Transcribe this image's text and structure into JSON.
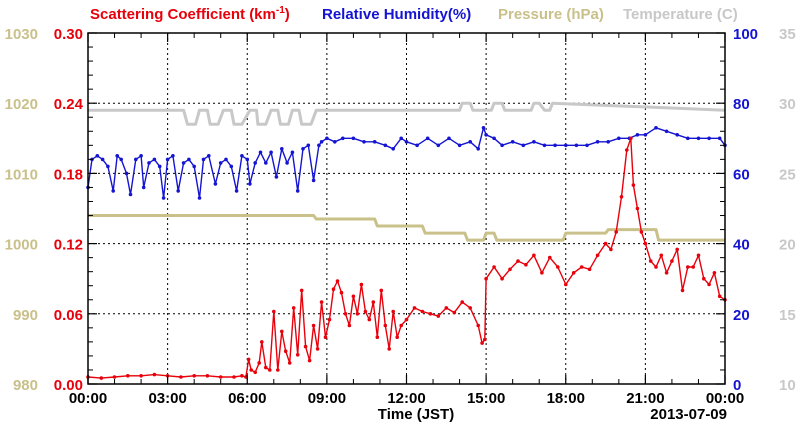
{
  "chart_data": {
    "type": "line",
    "legend": [
      {
        "text": "Scattering Coefficient (km",
        "sup": "-1",
        "tail": ")",
        "color": "#e8000b"
      },
      {
        "text": "Relative Humidity(%)",
        "color": "#1414d2"
      },
      {
        "text": "Pressure (hPa)",
        "color": "#c9c08a"
      },
      {
        "text": "Temperature (C)",
        "color": "#c8c8c8"
      }
    ],
    "xlabel": "Time (JST)",
    "date_label": "2013-07-09",
    "x_ticks": [
      "00:00",
      "03:00",
      "06:00",
      "09:00",
      "12:00",
      "15:00",
      "18:00",
      "21:00",
      "00:00"
    ],
    "axes": {
      "scattering": {
        "ylim": [
          0,
          0.3
        ],
        "ticks": [
          "0.00",
          "0.06",
          "0.12",
          "0.18",
          "0.24",
          "0.30"
        ],
        "color": "#e8000b"
      },
      "pressure": {
        "ylim": [
          980,
          1030
        ],
        "ticks": [
          "980",
          "990",
          "1000",
          "1010",
          "1020",
          "1030"
        ],
        "color": "#c9c08a"
      },
      "humidity": {
        "ylim": [
          0,
          100
        ],
        "ticks": [
          "0",
          "20",
          "40",
          "60",
          "80",
          "100"
        ],
        "color": "#1414d2"
      },
      "temperature": {
        "ylim": [
          10,
          35
        ],
        "ticks": [
          "10",
          "15",
          "20",
          "25",
          "30",
          "35"
        ],
        "color": "#c8c8c8"
      }
    },
    "xlim_hours": [
      0,
      24
    ],
    "series": [
      {
        "name": "Temperature (C)",
        "axis": "temperature",
        "color": "#c8c8c8",
        "x": [
          0,
          3.6,
          3.75,
          4.05,
          4.2,
          4.5,
          4.6,
          4.9,
          5.1,
          5.4,
          5.5,
          5.8,
          6.1,
          6.35,
          6.4,
          6.7,
          6.9,
          7.15,
          7.25,
          7.55,
          7.7,
          7.95,
          8.05,
          8.4,
          8.6,
          8.9,
          14,
          14.1,
          14.4,
          14.5,
          15.2,
          15.3,
          15.6,
          15.7,
          16.7,
          16.8,
          17,
          17.2,
          17.4,
          17.5,
          24
        ],
        "y": [
          29.5,
          29.5,
          28.5,
          28.5,
          29.5,
          29.5,
          28.5,
          28.5,
          29.5,
          29.5,
          28.5,
          28.5,
          29.5,
          29.5,
          28.5,
          28.5,
          29.5,
          29.5,
          28.5,
          28.5,
          29.5,
          29.5,
          28.5,
          28.5,
          29.5,
          29.5,
          29.5,
          30,
          30,
          29.5,
          29.5,
          30,
          30,
          29.5,
          29.5,
          30,
          30,
          29.5,
          29.5,
          30,
          29.5
        ]
      },
      {
        "name": "Pressure (hPa)",
        "axis": "pressure",
        "color": "#c9c08a",
        "x": [
          0,
          8.5,
          8.6,
          10.8,
          10.9,
          12.6,
          12.7,
          14.2,
          14.3,
          14.9,
          15.0,
          15.3,
          15.4,
          16.6,
          16.7,
          17.9,
          18.0,
          19.5,
          19.6,
          21.4,
          21.5,
          24
        ],
        "y": [
          1004,
          1004,
          1003.5,
          1003.5,
          1002.5,
          1002.5,
          1001.5,
          1001.5,
          1000.5,
          1000.5,
          1001.5,
          1001.5,
          1000.5,
          1000.5,
          1000.5,
          1000.5,
          1001.5,
          1001.5,
          1002,
          1002,
          1000.5,
          1000.5
        ]
      },
      {
        "name": "Relative Humidity(%)",
        "axis": "humidity",
        "color": "#1414d2",
        "x": [
          0,
          0.15,
          0.35,
          0.55,
          0.75,
          0.95,
          1.1,
          1.25,
          1.45,
          1.6,
          1.8,
          2.0,
          2.1,
          2.3,
          2.5,
          2.7,
          2.85,
          3.0,
          3.2,
          3.4,
          3.6,
          3.8,
          4.0,
          4.2,
          4.35,
          4.55,
          4.8,
          5.0,
          5.2,
          5.4,
          5.6,
          5.8,
          6.0,
          6.1,
          6.3,
          6.5,
          6.7,
          6.9,
          7.1,
          7.3,
          7.5,
          7.7,
          7.9,
          8.1,
          8.3,
          8.5,
          8.7,
          8.8,
          9.0,
          9.3,
          9.6,
          10.0,
          10.4,
          10.8,
          11.2,
          11.5,
          11.8,
          12.0,
          12.4,
          12.8,
          13.2,
          13.6,
          14.0,
          14.4,
          14.7,
          14.9,
          15.0,
          15.3,
          15.6,
          16.0,
          16.4,
          16.8,
          17.2,
          17.6,
          18.0,
          18.4,
          18.8,
          19.2,
          19.6,
          20.0,
          20.4,
          20.7,
          21.0,
          21.4,
          21.8,
          22.2,
          22.6,
          23.0,
          23.4,
          23.8,
          24.0
        ],
        "y": [
          56,
          64,
          65,
          64,
          62,
          55,
          65,
          64,
          60,
          54,
          64,
          65,
          56,
          63,
          64,
          62,
          53,
          64,
          65,
          55,
          63,
          64,
          62,
          53,
          64,
          65,
          57,
          63,
          64,
          62,
          55,
          65,
          64,
          57,
          63,
          66,
          63,
          66,
          59,
          67,
          63,
          66,
          55,
          67,
          68,
          58,
          68,
          69,
          70,
          69,
          70,
          70,
          69,
          69,
          68,
          67,
          70,
          69,
          68,
          70,
          68,
          70,
          68,
          69,
          67,
          73,
          71,
          70,
          68,
          69,
          68,
          69,
          68,
          68,
          68,
          68,
          68,
          69,
          69,
          70,
          70,
          71,
          71,
          73,
          72,
          71,
          70,
          70,
          70,
          70,
          68
        ]
      },
      {
        "name": "Scattering Coefficient",
        "axis": "scattering",
        "color": "#e8000b",
        "x": [
          0,
          0.5,
          1.0,
          1.5,
          2.0,
          2.5,
          3.0,
          3.5,
          4.0,
          4.5,
          5.0,
          5.5,
          5.8,
          5.95,
          6.05,
          6.15,
          6.3,
          6.45,
          6.55,
          6.7,
          6.85,
          7.0,
          7.15,
          7.3,
          7.45,
          7.6,
          7.75,
          7.9,
          8.05,
          8.2,
          8.35,
          8.5,
          8.65,
          8.8,
          8.95,
          9.1,
          9.25,
          9.4,
          9.55,
          9.7,
          9.85,
          10.0,
          10.15,
          10.3,
          10.45,
          10.6,
          10.75,
          10.9,
          11.05,
          11.2,
          11.35,
          11.5,
          11.65,
          11.8,
          12.0,
          12.3,
          12.6,
          12.9,
          13.2,
          13.5,
          13.8,
          14.1,
          14.4,
          14.7,
          14.85,
          14.95,
          15.0,
          15.3,
          15.6,
          15.9,
          16.2,
          16.5,
          16.8,
          17.1,
          17.4,
          17.7,
          18.0,
          18.3,
          18.6,
          18.9,
          19.2,
          19.5,
          19.7,
          19.9,
          20.1,
          20.3,
          20.45,
          20.55,
          20.7,
          20.85,
          21.0,
          21.2,
          21.4,
          21.6,
          21.8,
          22.0,
          22.2,
          22.4,
          22.6,
          22.8,
          23.0,
          23.2,
          23.4,
          23.6,
          23.8,
          24.0
        ],
        "y": [
          0.006,
          0.005,
          0.006,
          0.007,
          0.007,
          0.008,
          0.007,
          0.006,
          0.007,
          0.007,
          0.006,
          0.006,
          0.007,
          0.006,
          0.021,
          0.012,
          0.01,
          0.018,
          0.036,
          0.014,
          0.012,
          0.062,
          0.012,
          0.045,
          0.028,
          0.018,
          0.065,
          0.025,
          0.08,
          0.032,
          0.02,
          0.05,
          0.03,
          0.07,
          0.04,
          0.055,
          0.081,
          0.088,
          0.078,
          0.06,
          0.05,
          0.075,
          0.06,
          0.085,
          0.062,
          0.055,
          0.07,
          0.04,
          0.08,
          0.05,
          0.03,
          0.062,
          0.04,
          0.05,
          0.055,
          0.065,
          0.062,
          0.06,
          0.058,
          0.065,
          0.061,
          0.07,
          0.065,
          0.05,
          0.035,
          0.038,
          0.09,
          0.1,
          0.09,
          0.098,
          0.105,
          0.102,
          0.11,
          0.095,
          0.108,
          0.1,
          0.085,
          0.095,
          0.1,
          0.098,
          0.11,
          0.12,
          0.115,
          0.13,
          0.16,
          0.2,
          0.21,
          0.17,
          0.15,
          0.13,
          0.12,
          0.105,
          0.1,
          0.11,
          0.095,
          0.105,
          0.115,
          0.08,
          0.1,
          0.1,
          0.11,
          0.09,
          0.085,
          0.095,
          0.075,
          0.072
        ]
      }
    ]
  }
}
